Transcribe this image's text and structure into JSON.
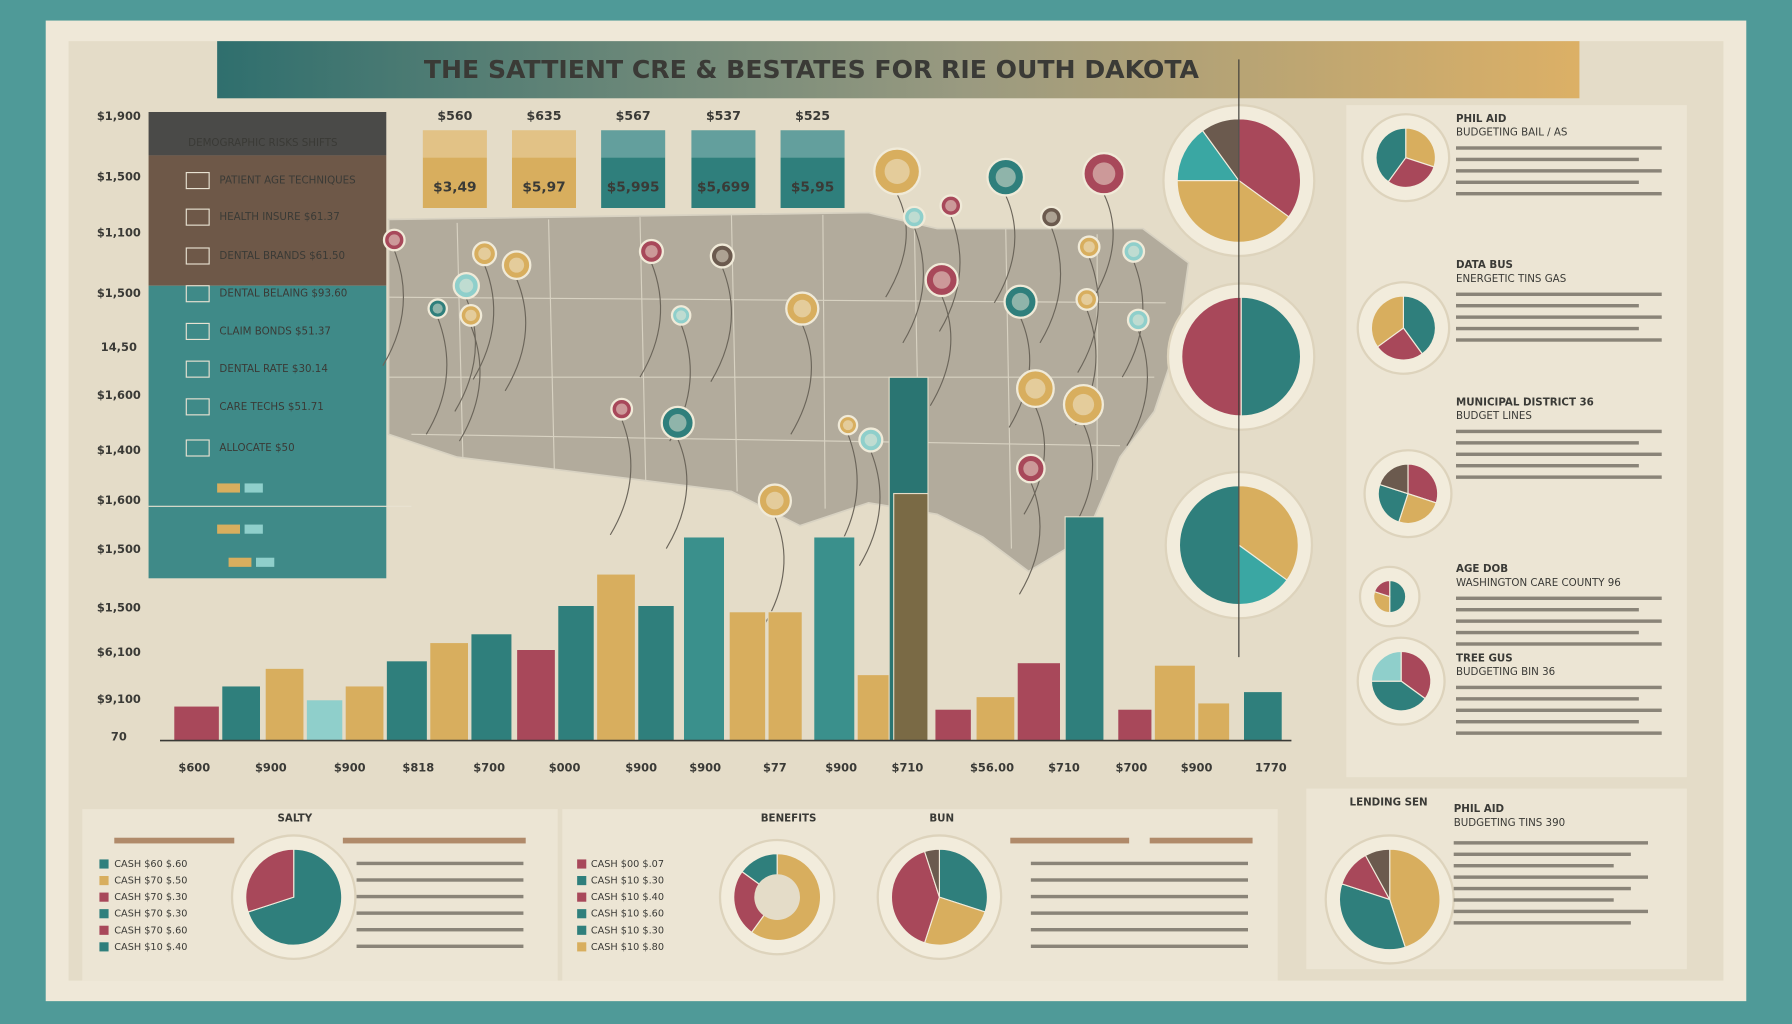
{
  "title": "THE SATTIENT CRE & BESTATES FOR RIE OUTH DAKOTA",
  "legend_panel": {
    "heading": "DEMOGRAPHIC RISKS SHIFTS",
    "items": [
      "PATIENT AGE TECHNIQUES",
      "HEALTH INSURE $61.37",
      "DENTAL BRANDS $61.50",
      "DENTAL BELAING $93.60",
      "CLAIM BONDS $51.37",
      "DENTAL RATE $30.14",
      "CARE TECHS $51.71",
      "ALLOCATE $50"
    ]
  },
  "cards": [
    {
      "head": "$560",
      "value": "$3,49",
      "color": "#d8ae5e"
    },
    {
      "head": "$635",
      "value": "$5,97",
      "color": "#d8ae5e"
    },
    {
      "head": "$567",
      "value": "$5,995",
      "color": "#2f7f7c"
    },
    {
      "head": "$537",
      "value": "$5,699",
      "color": "#2f7f7c"
    },
    {
      "head": "$525",
      "value": "$5,95",
      "color": "#2f7f7c"
    }
  ],
  "side_notes": [
    {
      "title": "PHIL AID",
      "subtitle": "BUDGETING BAIL / AS"
    },
    {
      "title": "DATA BUS",
      "subtitle": "ENERGETIC TINS GAS"
    },
    {
      "title": "MUNICIPAL DISTRICT 36",
      "subtitle": "BUDGET LINES"
    },
    {
      "title": "AGE DOB",
      "subtitle": "WASHINGTON CARE COUNTY 96"
    },
    {
      "title": "TREE GUS",
      "subtitle": "BUDGETING BIN 36"
    }
  ],
  "bottom": {
    "left_title": "SALTY",
    "mid_title": "BENEFITS",
    "mid_title2": "BUN",
    "right_title": "LENDING SEN",
    "right_note": "PHIL AID",
    "right_sub": "BUDGETING TINS 390",
    "left_rows": [
      "CASH $60  $.60",
      "CASH $70  $.50",
      "CASH $70  $.30",
      "CASH $70  $.30",
      "CASH $70  $.60",
      "CASH $10  $.40"
    ],
    "mid_rows": [
      "CASH $00  $.07",
      "CASH $10  $.30",
      "CASH $10  $.40",
      "CASH $10  $.60",
      "CASH $10  $.30",
      "CASH $10  $.80"
    ]
  },
  "chart_data": [
    {
      "type": "bar",
      "y_axis_labels": [
        "$1,900",
        "$1,500",
        "$1,100",
        "$1,500",
        "14,50",
        "$1,600",
        "$1,400",
        "$1,600",
        "$1,500",
        "$1,500",
        "$6,100",
        "$9,100",
        "70"
      ],
      "x_axis_labels": [
        "$600",
        "$900",
        "$900",
        "$818",
        "$700",
        "$000",
        "$900",
        "$900",
        "$77",
        "$900",
        "$710",
        "$56.00",
        "$710",
        "$700",
        "$900",
        "1770"
      ],
      "ylim": [
        0,
        100
      ],
      "values": [
        5.5,
        8.7,
        11.5,
        6.5,
        8.7,
        12.7,
        15.6,
        17,
        14.5,
        21.5,
        26.5,
        21.5,
        32.4,
        20.5,
        20.5,
        32.4,
        10.5,
        57.8,
        39.3,
        5,
        7,
        12.4,
        35.6,
        5,
        12,
        6,
        7.8
      ],
      "colors": [
        "#a8485a",
        "#2f7f7c",
        "#d8ae5e",
        "#8fcfcb",
        "#d8ae5e",
        "#2f7f7c",
        "#d8ae5e",
        "#2f7f7c",
        "#a8485a",
        "#2f7f7c",
        "#d8ae5e",
        "#2f7f7c",
        "#3a908c",
        "#d8ae5e",
        "#d8ae5e",
        "#3a908c",
        "#d8ae5e",
        "#2a7572",
        "#7a6a45",
        "#a8485a",
        "#d8ae5e",
        "#a8485a",
        "#2f7f7c",
        "#a8485a",
        "#d8ae5e",
        "#d8ae5e",
        "#2f7f7c"
      ]
    },
    {
      "type": "pie",
      "values": [
        35,
        40,
        15,
        10
      ],
      "colors": [
        "#a8485a",
        "#d8ae5e",
        "#3aa7a3",
        "#6b5a4e"
      ]
    },
    {
      "type": "pie",
      "values": [
        50,
        50
      ],
      "colors": [
        "#2f7f7c",
        "#a8485a"
      ]
    },
    {
      "type": "pie",
      "values": [
        35,
        15,
        50
      ],
      "colors": [
        "#d8ae5e",
        "#3aa7a3",
        "#2f7f7c"
      ]
    },
    {
      "type": "pie",
      "values": [
        30,
        30,
        40
      ],
      "colors": [
        "#d8ae5e",
        "#a8485a",
        "#2f7f7c"
      ]
    },
    {
      "type": "pie",
      "values": [
        40,
        25,
        35
      ],
      "colors": [
        "#2f7f7c",
        "#a8485a",
        "#d8ae5e"
      ]
    },
    {
      "type": "pie",
      "values": [
        30,
        25,
        25,
        20
      ],
      "colors": [
        "#a8485a",
        "#d8ae5e",
        "#2f7f7c",
        "#6b5a4e"
      ]
    },
    {
      "type": "pie",
      "values": [
        50,
        30,
        20
      ],
      "colors": [
        "#2f7f7c",
        "#d8ae5e",
        "#a8485a"
      ]
    },
    {
      "type": "pie",
      "values": [
        35,
        40,
        25
      ],
      "colors": [
        "#a8485a",
        "#2f7f7c",
        "#8fcfcb"
      ]
    },
    {
      "type": "pie",
      "values": [
        45,
        35,
        12,
        8
      ],
      "colors": [
        "#d8ae5e",
        "#2f7f7c",
        "#a8485a",
        "#6b5a4e"
      ]
    },
    {
      "type": "pie",
      "values": [
        70,
        30
      ],
      "colors": [
        "#2f7f7c",
        "#a8485a"
      ]
    },
    {
      "type": "pie",
      "values": [
        60,
        25,
        15
      ],
      "colors": [
        "#d8ae5e",
        "#a8485a",
        "#2f7f7c"
      ]
    },
    {
      "type": "pie",
      "values": [
        30,
        25,
        40,
        5
      ],
      "colors": [
        "#2f7f7c",
        "#d8ae5e",
        "#a8485a",
        "#6b5a4e"
      ]
    }
  ]
}
